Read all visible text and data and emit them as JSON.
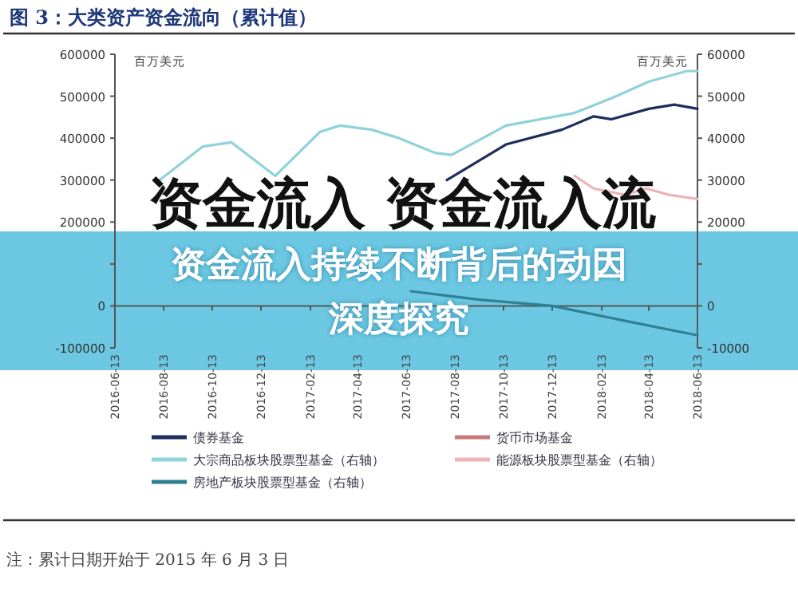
{
  "chart_data": {
    "type": "line",
    "title": "图 3：大类资产资金流向（累计值）",
    "ylabel": "百万美元",
    "y2label": "百万美元",
    "annotations": [
      "资金流入 资金流入流",
      "资金流入持续不断背后的动因深度探究",
      "注：累计日期开始于 2015 年 6 月 3 日"
    ],
    "xlim": [
      "2016-06-13",
      "2018-06-13"
    ],
    "xticks": [
      "2016-06-13",
      "2016-08-13",
      "2016-10-13",
      "2016-12-13",
      "2017-02-13",
      "2017-04-13",
      "2017-06-13",
      "2017-08-13",
      "2017-10-13",
      "2017-12-13",
      "2018-02-13",
      "2018-04-13",
      "2018-06-13"
    ],
    "ylim": [
      -100000,
      600000
    ],
    "yticks": [
      -100000,
      0,
      {
        "value": 100000,
        "label": null
      },
      200000,
      300000,
      400000,
      500000,
      600000
    ],
    "y2lim": [
      -10000,
      60000
    ],
    "y2ticks": [
      -10000,
      0,
      {
        "value": 10000,
        "label": null
      },
      20000,
      30000,
      40000,
      50000,
      60000
    ],
    "legend": "bottom",
    "marker": "none",
    "line_style": "solid",
    "series": [
      {
        "name": "债券基金",
        "color": "#1f2d5c",
        "x": [
          "2017-08-03",
          "2017-10-16",
          "2017-12-25",
          "2018-02-03",
          "2018-02-25",
          "2018-04-13",
          "2018-05-15",
          "2018-06-13"
        ],
        "values": [
          300000,
          385000,
          420000,
          452000,
          445000,
          470000,
          480000,
          470000
        ]
      },
      {
        "name": "货币市场基金",
        "color": "#c87878"
      },
      {
        "name": "大宗商品板块股票型基金（右轴）",
        "color": "#8fd3d8",
        "axis": "y2",
        "x": [
          "2016-08-08",
          "2016-10-01",
          "2016-11-06",
          "2016-12-31",
          "2017-02-25",
          "2017-03-22",
          "2017-05-01",
          "2017-06-04",
          "2017-07-19",
          "2017-08-09",
          "2017-10-16",
          "2018-01-10",
          "2018-02-25",
          "2018-04-13",
          "2018-05-31",
          "2018-06-13"
        ],
        "values": [
          30000,
          38000,
          39000,
          31000,
          41500,
          43000,
          42000,
          40000,
          36500,
          36000,
          43000,
          46000,
          49500,
          53500,
          56000,
          56000
        ]
      },
      {
        "name": "能源板块股票型基金（右轴）",
        "color": "#eeb4b4",
        "axis": "y2",
        "x": [
          "2018-01-10",
          "2018-02-03",
          "2018-03-13",
          "2018-04-10",
          "2018-05-08",
          "2018-06-13"
        ],
        "values": [
          31000,
          28000,
          26500,
          28000,
          26500,
          25500
        ]
      },
      {
        "name": "房地产板块股票型基金（右轴）",
        "color": "#2f7f95",
        "axis": "y2",
        "x": [
          "2017-06-19",
          "2017-09-13",
          "2017-12-13",
          "2018-03-13",
          "2018-06-13"
        ],
        "values": [
          3500,
          1500,
          0,
          -3500,
          -7000
        ]
      }
    ]
  }
}
